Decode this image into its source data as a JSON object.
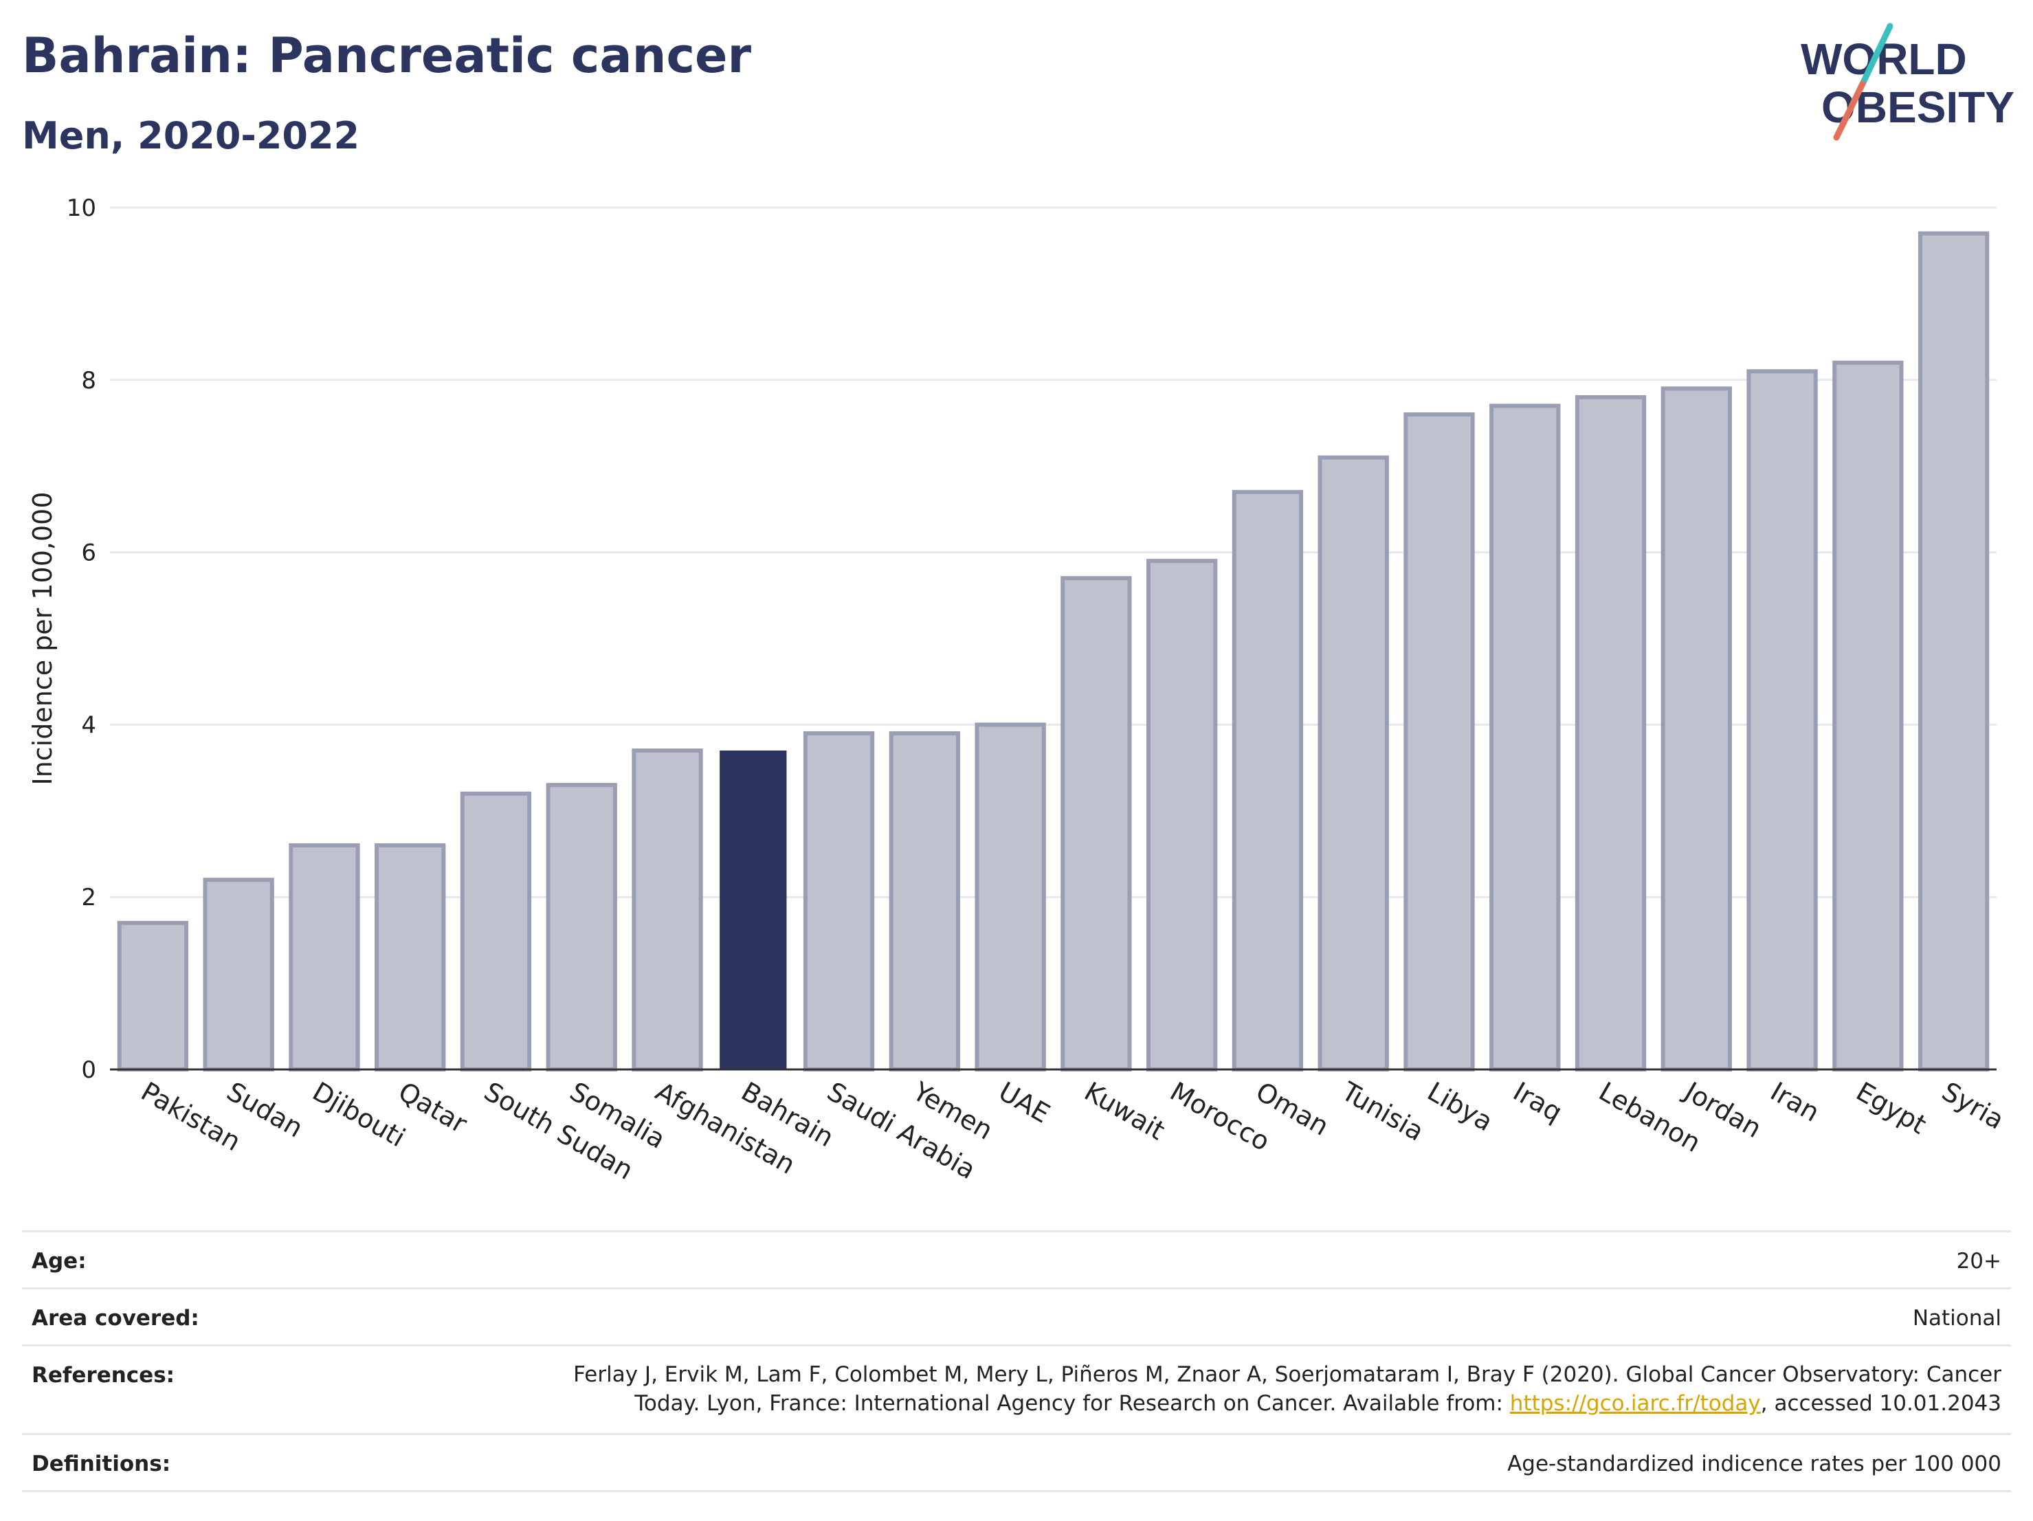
{
  "header": {
    "title": "Bahrain: Pancreatic cancer",
    "subtitle": "Men, 2020-2022"
  },
  "logo": {
    "line1": "WORLD",
    "line2": "OBESITY",
    "slash_colors": [
      "#3bbfc1",
      "#e2715a"
    ],
    "text_color": "#2b3560"
  },
  "chart_data": {
    "type": "bar",
    "ylabel": "Incidence per 100,000",
    "ylim": [
      0,
      10
    ],
    "yticks": [
      0,
      2,
      4,
      6,
      8,
      10
    ],
    "grid": true,
    "highlight": "Bahrain",
    "colors": {
      "bar": "#bfc2ce",
      "bar_edge": "#9a9eb5",
      "highlight": "#2b3560",
      "grid": "#e6e8ee",
      "axis": "#333333"
    },
    "categories": [
      "Pakistan",
      "Sudan",
      "Djibouti",
      "Qatar",
      "South Sudan",
      "Somalia",
      "Afghanistan",
      "Bahrain",
      "Saudi Arabia",
      "Yemen",
      "UAE",
      "Kuwait",
      "Morocco",
      "Oman",
      "Tunisia",
      "Libya",
      "Iraq",
      "Lebanon",
      "Jordan",
      "Iran",
      "Egypt",
      "Syria"
    ],
    "values": [
      1.7,
      2.2,
      2.6,
      2.6,
      3.2,
      3.3,
      3.7,
      3.7,
      3.9,
      3.9,
      4.0,
      5.7,
      5.9,
      6.7,
      7.1,
      7.6,
      7.7,
      7.8,
      7.9,
      8.1,
      8.2,
      9.7
    ]
  },
  "info_table": {
    "age_label": "Age:",
    "age_value": "20+",
    "area_label": "Area covered:",
    "area_value": "National",
    "references_label": "References:",
    "references_line1": "Ferlay J, Ervik M, Lam F, Colombet M, Mery L, Piñeros M, Znaor A, Soerjomataram I, Bray F (2020). Global Cancer Observatory: Cancer",
    "references_line2_pre": "Today. Lyon, France: International Agency for Research on Cancer. Available from: ",
    "references_link": "https://gco.iarc.fr/today",
    "references_line2_post": ", accessed 10.01.2043",
    "definitions_label": "Definitions:",
    "definitions_value": "Age-standardized indicence rates per 100 000"
  }
}
